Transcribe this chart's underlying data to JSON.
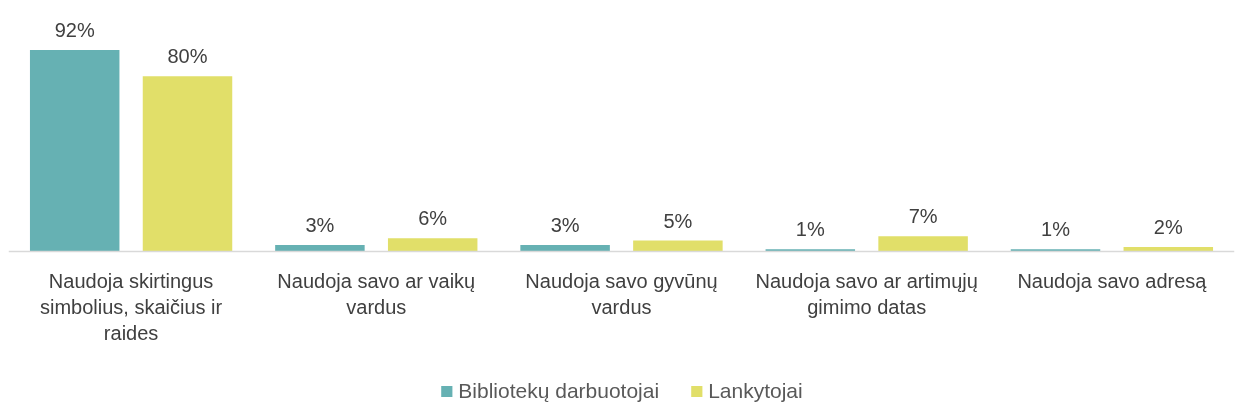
{
  "chart_data": {
    "type": "bar",
    "categories": [
      "Naudoja skirtingus simbolius, skaičius ir raides",
      "Naudoja savo ar vaikų vardus",
      "Naudoja savo gyvūnų vardus",
      "Naudoja savo ar artimųjų gimimo datas",
      "Naudoja savo adresą"
    ],
    "series": [
      {
        "name": "Bibliotekų darbuotojai",
        "color": "#66b1b3",
        "values": [
          92,
          3,
          3,
          1,
          1
        ],
        "value_labels": [
          "92%",
          "3%",
          "3%",
          "1%",
          "1%"
        ]
      },
      {
        "name": "Lankytojai",
        "color": "#e1df69",
        "values": [
          80,
          6,
          5,
          7,
          2
        ],
        "value_labels": [
          "80%",
          "6%",
          "5%",
          "7%",
          "2%"
        ]
      }
    ],
    "legend": "bottom",
    "tick_labels": "x"
  }
}
